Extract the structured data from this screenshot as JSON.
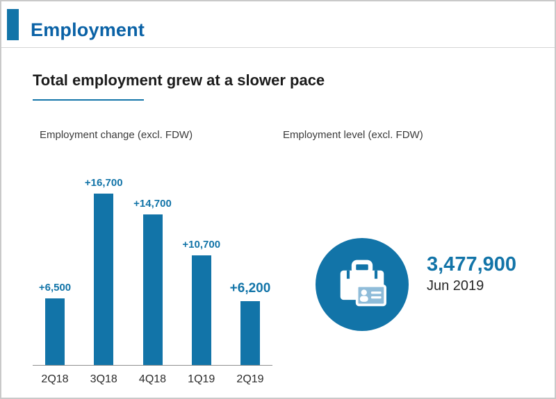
{
  "page": {
    "title": "Employment"
  },
  "headline": "Total employment grew at a slower pace",
  "colors": {
    "primary": "#1274a8",
    "title": "#0a62a6",
    "bar": "#1274a8",
    "card": "#8fbcd9"
  },
  "chart_data": {
    "type": "bar",
    "title": "Employment change (excl. FDW)",
    "categories": [
      "2Q18",
      "3Q18",
      "4Q18",
      "1Q19",
      "2Q19"
    ],
    "values": [
      6500,
      16700,
      14700,
      10700,
      6200
    ],
    "labels": [
      "+6,500",
      "+16,700",
      "+14,700",
      "+10,700",
      "+6,200"
    ],
    "emphasized_index": 4,
    "xlabel": "",
    "ylabel": "",
    "ylim": [
      0,
      17000
    ],
    "grid": false,
    "legend": "none",
    "bar_color": "#1274a8"
  },
  "level": {
    "title": "Employment level (excl. FDW)",
    "value": "3,477,900",
    "date": "Jun 2019",
    "icon": "briefcase-id-card-icon"
  }
}
